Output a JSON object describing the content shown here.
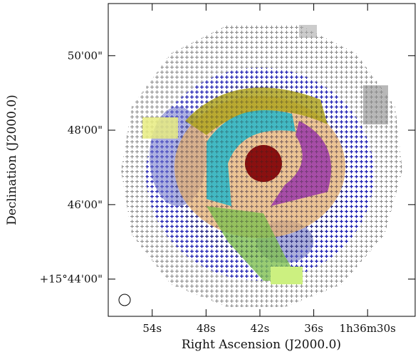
{
  "chart_data": {
    "type": "image",
    "xlabel": "Right Ascension (J2000.0)",
    "ylabel": "Declination (J2000.0)",
    "xlim": [
      58.9,
      24.7
    ],
    "xticks": [
      {
        "value": 54,
        "label": "54s"
      },
      {
        "value": 48,
        "label": "48s"
      },
      {
        "value": 42,
        "label": "42s"
      },
      {
        "value": 36,
        "label": "36s"
      },
      {
        "value": 30,
        "label": "1h36m30s"
      }
    ],
    "ylim": [
      43.0,
      51.4
    ],
    "yticks": [
      {
        "value": 44,
        "label": "+15°44'00\""
      },
      {
        "value": 46,
        "label": "46'00\""
      },
      {
        "value": 48,
        "label": "48'00\""
      },
      {
        "value": 50,
        "label": "50'00\""
      }
    ]
  }
}
